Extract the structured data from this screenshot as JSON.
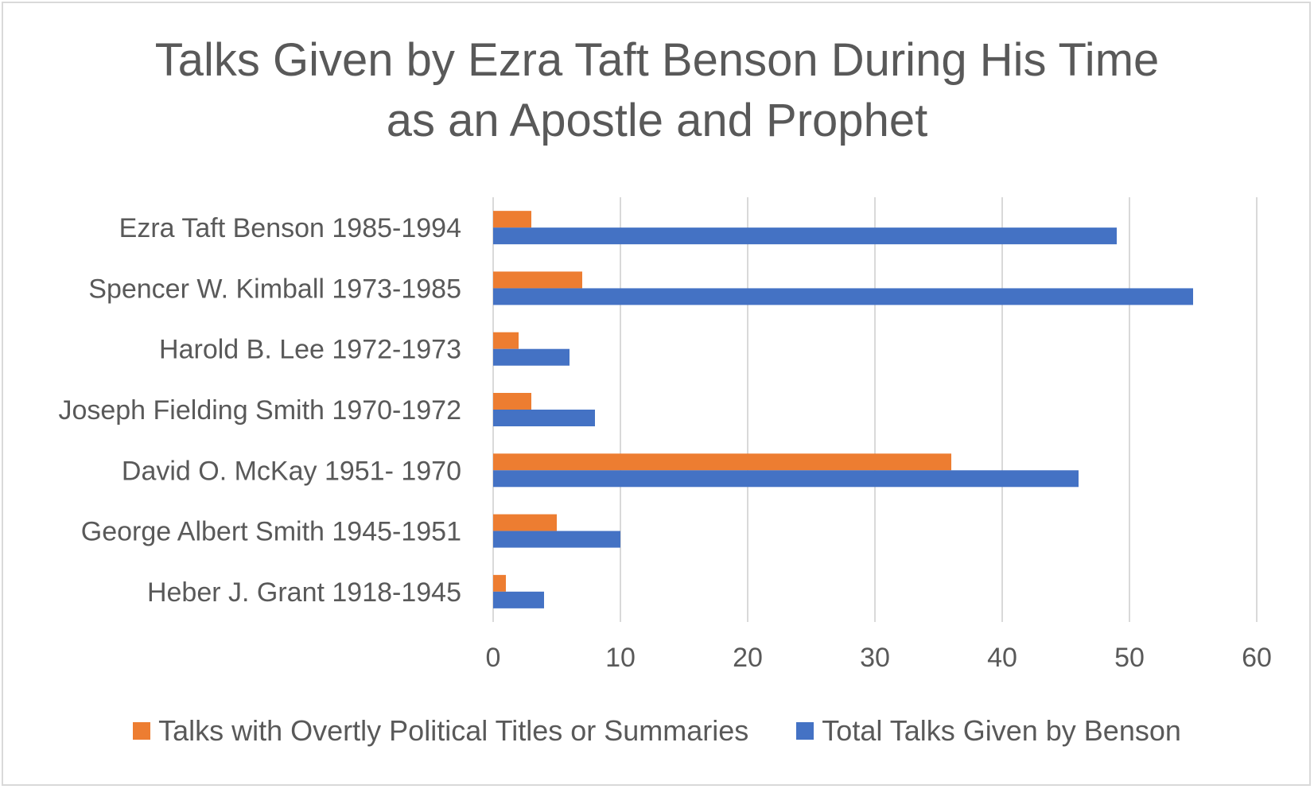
{
  "chart_data": {
    "type": "bar",
    "orientation": "horizontal",
    "title": "Talks Given by Ezra Taft Benson During His Time as an Apostle and Prophet",
    "title_lines": [
      "Talks Given by Ezra Taft Benson During His Time",
      "as an Apostle and Prophet"
    ],
    "categories": [
      "Ezra Taft Benson 1985-1994",
      "Spencer W. Kimball 1973-1985",
      "Harold B. Lee 1972-1973",
      "Joseph Fielding Smith 1970-1972",
      "David O. McKay 1951- 1970",
      "George Albert Smith 1945-1951",
      "Heber J. Grant 1918-1945"
    ],
    "series": [
      {
        "name": "Talks with Overtly Political Titles or Summaries",
        "color": "#ed7d31",
        "values": [
          3,
          7,
          2,
          3,
          36,
          5,
          1
        ]
      },
      {
        "name": "Total Talks Given by Benson",
        "color": "#4472c4",
        "values": [
          49,
          55,
          6,
          8,
          46,
          10,
          4
        ]
      }
    ],
    "xlim": [
      0,
      60
    ],
    "xticks": [
      "0",
      "10",
      "20",
      "30",
      "40",
      "50",
      "60"
    ],
    "xlabel": "",
    "ylabel": "",
    "grid": true,
    "legend_position": "bottom"
  }
}
